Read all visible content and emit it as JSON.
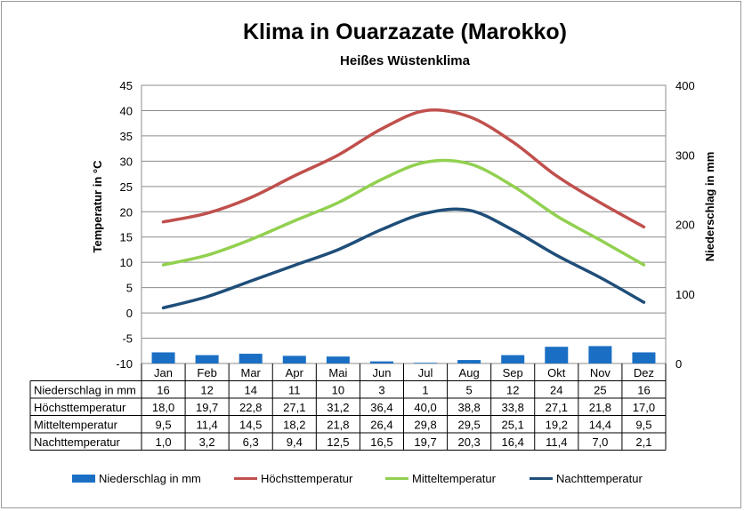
{
  "chart_data": {
    "type": "bar+line",
    "title": "Klima in Ouarzazate (Marokko)",
    "subtitle": "Heißes Wüstenklima",
    "categories": [
      "Jan",
      "Feb",
      "Mar",
      "Apr",
      "Mai",
      "Jun",
      "Jul",
      "Aug",
      "Sep",
      "Okt",
      "Nov",
      "Dez"
    ],
    "ylabel_left": "Temperatur in °C",
    "ylabel_right": "Niederschlag in mm",
    "ylim_left": [
      -10,
      45
    ],
    "ylim_right": [
      0,
      400
    ],
    "yticks_left": [
      "45",
      "40",
      "35",
      "30",
      "25",
      "20",
      "15",
      "10",
      "5",
      "0",
      "-5",
      "-10"
    ],
    "yticks_right": [
      "400",
      "300",
      "200",
      "100",
      "0"
    ],
    "grid": true,
    "legend_position": "bottom",
    "series": [
      {
        "name": "Niederschlag in mm",
        "kind": "bar",
        "axis": "right",
        "color": "#1a6fc4",
        "values": [
          16,
          12,
          14,
          11,
          10,
          3,
          1,
          5,
          12,
          24,
          25,
          16
        ],
        "labels": [
          "16",
          "12",
          "14",
          "11",
          "10",
          "3",
          "1",
          "5",
          "12",
          "24",
          "25",
          "16"
        ]
      },
      {
        "name": "Höchsttemperatur",
        "kind": "line",
        "axis": "left",
        "color": "#c0504d",
        "values": [
          18.0,
          19.7,
          22.8,
          27.1,
          31.2,
          36.4,
          40.0,
          38.8,
          33.8,
          27.1,
          21.8,
          17.0
        ],
        "labels": [
          "18,0",
          "19,7",
          "22,8",
          "27,1",
          "31,2",
          "36,4",
          "40,0",
          "38,8",
          "33,8",
          "27,1",
          "21,8",
          "17,0"
        ]
      },
      {
        "name": "Mitteltemperatur",
        "kind": "line",
        "axis": "left",
        "color": "#92d050",
        "values": [
          9.5,
          11.4,
          14.5,
          18.2,
          21.8,
          26.4,
          29.8,
          29.5,
          25.1,
          19.2,
          14.4,
          9.5
        ],
        "labels": [
          "9,5",
          "11,4",
          "14,5",
          "18,2",
          "21,8",
          "26,4",
          "29,8",
          "29,5",
          "25,1",
          "19,2",
          "14,4",
          "9,5"
        ]
      },
      {
        "name": "Nachttemperatur",
        "kind": "line",
        "axis": "left",
        "color": "#1f4e79",
        "values": [
          1.0,
          3.2,
          6.3,
          9.4,
          12.5,
          16.5,
          19.7,
          20.3,
          16.4,
          11.4,
          7.0,
          2.1
        ],
        "labels": [
          "1,0",
          "3,2",
          "6,3",
          "9,4",
          "12,5",
          "16,5",
          "19,7",
          "20,3",
          "16,4",
          "11,4",
          "7,0",
          "2,1"
        ]
      }
    ]
  }
}
